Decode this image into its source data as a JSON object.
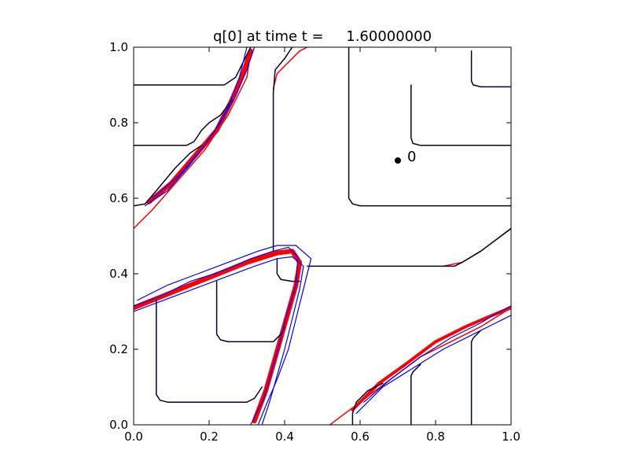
{
  "chart_data": {
    "type": "line",
    "title": "q[0] at time t =     1.60000000",
    "xlabel": "",
    "ylabel": "",
    "xlim": [
      0.0,
      1.0
    ],
    "ylim": [
      0.0,
      1.0
    ],
    "x_ticks": [
      "0.0",
      "0.2",
      "0.4",
      "0.6",
      "0.8",
      "1.0"
    ],
    "y_ticks": [
      "0.0",
      "0.2",
      "0.4",
      "0.6",
      "0.8",
      "1.0"
    ],
    "grid": false,
    "legend": "none",
    "colors": {
      "contour_fine": "#000033",
      "contour_blue": "#0000ff",
      "contour_red": "#ff0000",
      "marker": "#000000"
    },
    "marker": {
      "x": 0.7,
      "y": 0.7,
      "label": "0"
    },
    "series": [
      {
        "color": "#ff0000",
        "width": 6,
        "points": [
          [
            0.0,
            0.31
          ],
          [
            0.1,
            0.35
          ],
          [
            0.2,
            0.39
          ],
          [
            0.3,
            0.43
          ],
          [
            0.38,
            0.455
          ],
          [
            0.42,
            0.46
          ],
          [
            0.44,
            0.43
          ],
          [
            0.43,
            0.37
          ],
          [
            0.41,
            0.3
          ],
          [
            0.39,
            0.23
          ],
          [
            0.37,
            0.16
          ],
          [
            0.35,
            0.09
          ],
          [
            0.32,
            0.01
          ]
        ]
      },
      {
        "color": "#ff0000",
        "width": 6,
        "points": [
          [
            0.04,
            0.59
          ],
          [
            0.1,
            0.64
          ],
          [
            0.16,
            0.71
          ],
          [
            0.22,
            0.78
          ],
          [
            0.26,
            0.86
          ],
          [
            0.29,
            0.93
          ],
          [
            0.31,
            0.99
          ]
        ]
      },
      {
        "color": "#ff0000",
        "width": 4,
        "points": [
          [
            0.58,
            0.04
          ],
          [
            0.65,
            0.11
          ],
          [
            0.72,
            0.16
          ],
          [
            0.8,
            0.22
          ],
          [
            0.88,
            0.26
          ],
          [
            0.95,
            0.29
          ],
          [
            1.0,
            0.31
          ]
        ]
      },
      {
        "color": "#ff0000",
        "width": 1.5,
        "points": [
          [
            0.0,
            0.52
          ],
          [
            0.05,
            0.57
          ],
          [
            0.12,
            0.65
          ],
          [
            0.19,
            0.73
          ],
          [
            0.25,
            0.82
          ],
          [
            0.3,
            0.92
          ],
          [
            0.31,
            0.99
          ]
        ]
      },
      {
        "color": "#ff0000",
        "width": 1.5,
        "points": [
          [
            0.52,
            0.0
          ],
          [
            0.6,
            0.06
          ],
          [
            0.68,
            0.12
          ],
          [
            0.76,
            0.18
          ],
          [
            0.84,
            0.22
          ],
          [
            0.92,
            0.26
          ],
          [
            1.0,
            0.31
          ]
        ]
      },
      {
        "color": "#ff0000",
        "width": 1.5,
        "points": [
          [
            0.82,
            0.42
          ],
          [
            0.87,
            0.43
          ],
          [
            0.92,
            0.46
          ],
          [
            0.96,
            0.49
          ],
          [
            1.0,
            0.52
          ]
        ]
      },
      {
        "color": "#ff0000",
        "width": 1.5,
        "points": [
          [
            0.37,
            0.89
          ],
          [
            0.38,
            0.93
          ],
          [
            0.41,
            0.96
          ],
          [
            0.44,
            0.99
          ],
          [
            0.46,
            1.0
          ]
        ]
      },
      {
        "color": "#000033",
        "width": 1.5,
        "points": [
          [
            0.0,
            0.9
          ],
          [
            0.24,
            0.9
          ],
          [
            0.27,
            0.92
          ],
          [
            0.29,
            0.96
          ],
          [
            0.31,
            1.0
          ]
        ]
      },
      {
        "color": "#000033",
        "width": 1.5,
        "points": [
          [
            0.0,
            0.74
          ],
          [
            0.14,
            0.74
          ],
          [
            0.16,
            0.75
          ],
          [
            0.18,
            0.78
          ],
          [
            0.2,
            0.8
          ],
          [
            0.23,
            0.82
          ],
          [
            0.26,
            0.86
          ]
        ]
      },
      {
        "color": "#000033",
        "width": 1.5,
        "points": [
          [
            0.0,
            0.58
          ],
          [
            0.03,
            0.585
          ],
          [
            0.06,
            0.62
          ],
          [
            0.11,
            0.68
          ],
          [
            0.15,
            0.72
          ],
          [
            0.18,
            0.74
          ]
        ]
      },
      {
        "color": "#000033",
        "width": 1.5,
        "points": [
          [
            0.42,
            1.0
          ],
          [
            0.4,
            0.97
          ],
          [
            0.375,
            0.94
          ],
          [
            0.37,
            0.88
          ],
          [
            0.37,
            0.46
          ]
        ]
      },
      {
        "color": "#000033",
        "width": 1.5,
        "points": [
          [
            0.57,
            1.0
          ],
          [
            0.57,
            0.6
          ],
          [
            0.58,
            0.585
          ],
          [
            0.6,
            0.58
          ],
          [
            1.0,
            0.58
          ]
        ]
      },
      {
        "color": "#000033",
        "width": 1.5,
        "points": [
          [
            0.735,
            0.9
          ],
          [
            0.735,
            0.76
          ],
          [
            0.74,
            0.745
          ],
          [
            0.76,
            0.74
          ],
          [
            1.0,
            0.74
          ]
        ]
      },
      {
        "color": "#000033",
        "width": 1.5,
        "points": [
          [
            0.895,
            0.99
          ],
          [
            0.895,
            0.91
          ],
          [
            0.9,
            0.9
          ],
          [
            0.92,
            0.895
          ],
          [
            1.0,
            0.895
          ]
        ]
      },
      {
        "color": "#000033",
        "width": 1.5,
        "points": [
          [
            0.46,
            0.42
          ],
          [
            0.85,
            0.42
          ],
          [
            0.87,
            0.43
          ],
          [
            0.92,
            0.46
          ],
          [
            0.96,
            0.49
          ],
          [
            1.0,
            0.52
          ]
        ]
      },
      {
        "color": "#000033",
        "width": 1.5,
        "points": [
          [
            0.06,
            0.33
          ],
          [
            0.06,
            0.08
          ],
          [
            0.07,
            0.065
          ],
          [
            0.09,
            0.06
          ],
          [
            0.3,
            0.06
          ],
          [
            0.32,
            0.07
          ],
          [
            0.34,
            0.1
          ]
        ]
      },
      {
        "color": "#000033",
        "width": 1.5,
        "points": [
          [
            0.22,
            0.38
          ],
          [
            0.22,
            0.24
          ],
          [
            0.23,
            0.225
          ],
          [
            0.25,
            0.22
          ],
          [
            0.37,
            0.22
          ],
          [
            0.39,
            0.24
          ],
          [
            0.4,
            0.26
          ]
        ]
      },
      {
        "color": "#000033",
        "width": 1.5,
        "points": [
          [
            0.38,
            0.44
          ],
          [
            0.38,
            0.4
          ],
          [
            0.39,
            0.385
          ],
          [
            0.42,
            0.38
          ],
          [
            0.44,
            0.38
          ]
        ]
      },
      {
        "color": "#000033",
        "width": 1.5,
        "points": [
          [
            0.58,
            0.0
          ],
          [
            0.58,
            0.03
          ],
          [
            0.59,
            0.06
          ],
          [
            0.62,
            0.09
          ],
          [
            0.66,
            0.11
          ]
        ]
      },
      {
        "color": "#000033",
        "width": 1.5,
        "points": [
          [
            0.735,
            0.0
          ],
          [
            0.735,
            0.13
          ],
          [
            0.74,
            0.14
          ],
          [
            0.76,
            0.16
          ]
        ]
      },
      {
        "color": "#000033",
        "width": 1.5,
        "points": [
          [
            0.895,
            0.0
          ],
          [
            0.895,
            0.22
          ],
          [
            0.9,
            0.23
          ],
          [
            0.92,
            0.25
          ]
        ]
      },
      {
        "color": "#0000ff",
        "width": 1.2,
        "points": [
          [
            0.0,
            0.3
          ],
          [
            0.08,
            0.33
          ],
          [
            0.16,
            0.36
          ],
          [
            0.24,
            0.39
          ],
          [
            0.32,
            0.42
          ],
          [
            0.38,
            0.44
          ],
          [
            0.42,
            0.445
          ],
          [
            0.45,
            0.42
          ],
          [
            0.44,
            0.36
          ],
          [
            0.42,
            0.28
          ],
          [
            0.4,
            0.2
          ],
          [
            0.38,
            0.13
          ],
          [
            0.36,
            0.06
          ],
          [
            0.34,
            0.0
          ]
        ]
      },
      {
        "color": "#0000ff",
        "width": 1.2,
        "points": [
          [
            0.01,
            0.33
          ],
          [
            0.09,
            0.37
          ],
          [
            0.17,
            0.4
          ],
          [
            0.25,
            0.43
          ],
          [
            0.33,
            0.46
          ],
          [
            0.38,
            0.475
          ],
          [
            0.43,
            0.475
          ],
          [
            0.47,
            0.44
          ],
          [
            0.45,
            0.36
          ],
          [
            0.43,
            0.28
          ],
          [
            0.41,
            0.2
          ],
          [
            0.38,
            0.12
          ],
          [
            0.35,
            0.05
          ],
          [
            0.33,
            0.0
          ]
        ]
      },
      {
        "color": "#0000ff",
        "width": 1.2,
        "points": [
          [
            0.0,
            0.315
          ],
          [
            0.07,
            0.34
          ],
          [
            0.15,
            0.38
          ],
          [
            0.23,
            0.405
          ],
          [
            0.31,
            0.44
          ],
          [
            0.37,
            0.46
          ],
          [
            0.41,
            0.47
          ],
          [
            0.435,
            0.445
          ],
          [
            0.43,
            0.37
          ],
          [
            0.405,
            0.29
          ],
          [
            0.385,
            0.21
          ],
          [
            0.365,
            0.14
          ],
          [
            0.345,
            0.07
          ],
          [
            0.31,
            0.0
          ]
        ]
      },
      {
        "color": "#0000ff",
        "width": 1.2,
        "points": [
          [
            0.03,
            0.58
          ],
          [
            0.09,
            0.62
          ],
          [
            0.15,
            0.69
          ],
          [
            0.21,
            0.77
          ],
          [
            0.25,
            0.84
          ],
          [
            0.28,
            0.92
          ],
          [
            0.3,
            1.0
          ]
        ]
      },
      {
        "color": "#0000ff",
        "width": 1.2,
        "points": [
          [
            0.05,
            0.6
          ],
          [
            0.12,
            0.66
          ],
          [
            0.18,
            0.73
          ],
          [
            0.23,
            0.8
          ],
          [
            0.27,
            0.87
          ],
          [
            0.3,
            0.94
          ],
          [
            0.32,
            1.0
          ]
        ]
      },
      {
        "color": "#0000ff",
        "width": 1.2,
        "points": [
          [
            0.59,
            0.03
          ],
          [
            0.66,
            0.1
          ],
          [
            0.74,
            0.15
          ],
          [
            0.82,
            0.2
          ],
          [
            0.9,
            0.24
          ],
          [
            0.96,
            0.27
          ],
          [
            1.0,
            0.29
          ]
        ]
      },
      {
        "color": "#0000ff",
        "width": 1.2,
        "points": [
          [
            0.61,
            0.06
          ],
          [
            0.68,
            0.12
          ],
          [
            0.76,
            0.18
          ],
          [
            0.84,
            0.23
          ],
          [
            0.92,
            0.27
          ],
          [
            0.97,
            0.3
          ],
          [
            1.0,
            0.315
          ]
        ]
      }
    ]
  }
}
